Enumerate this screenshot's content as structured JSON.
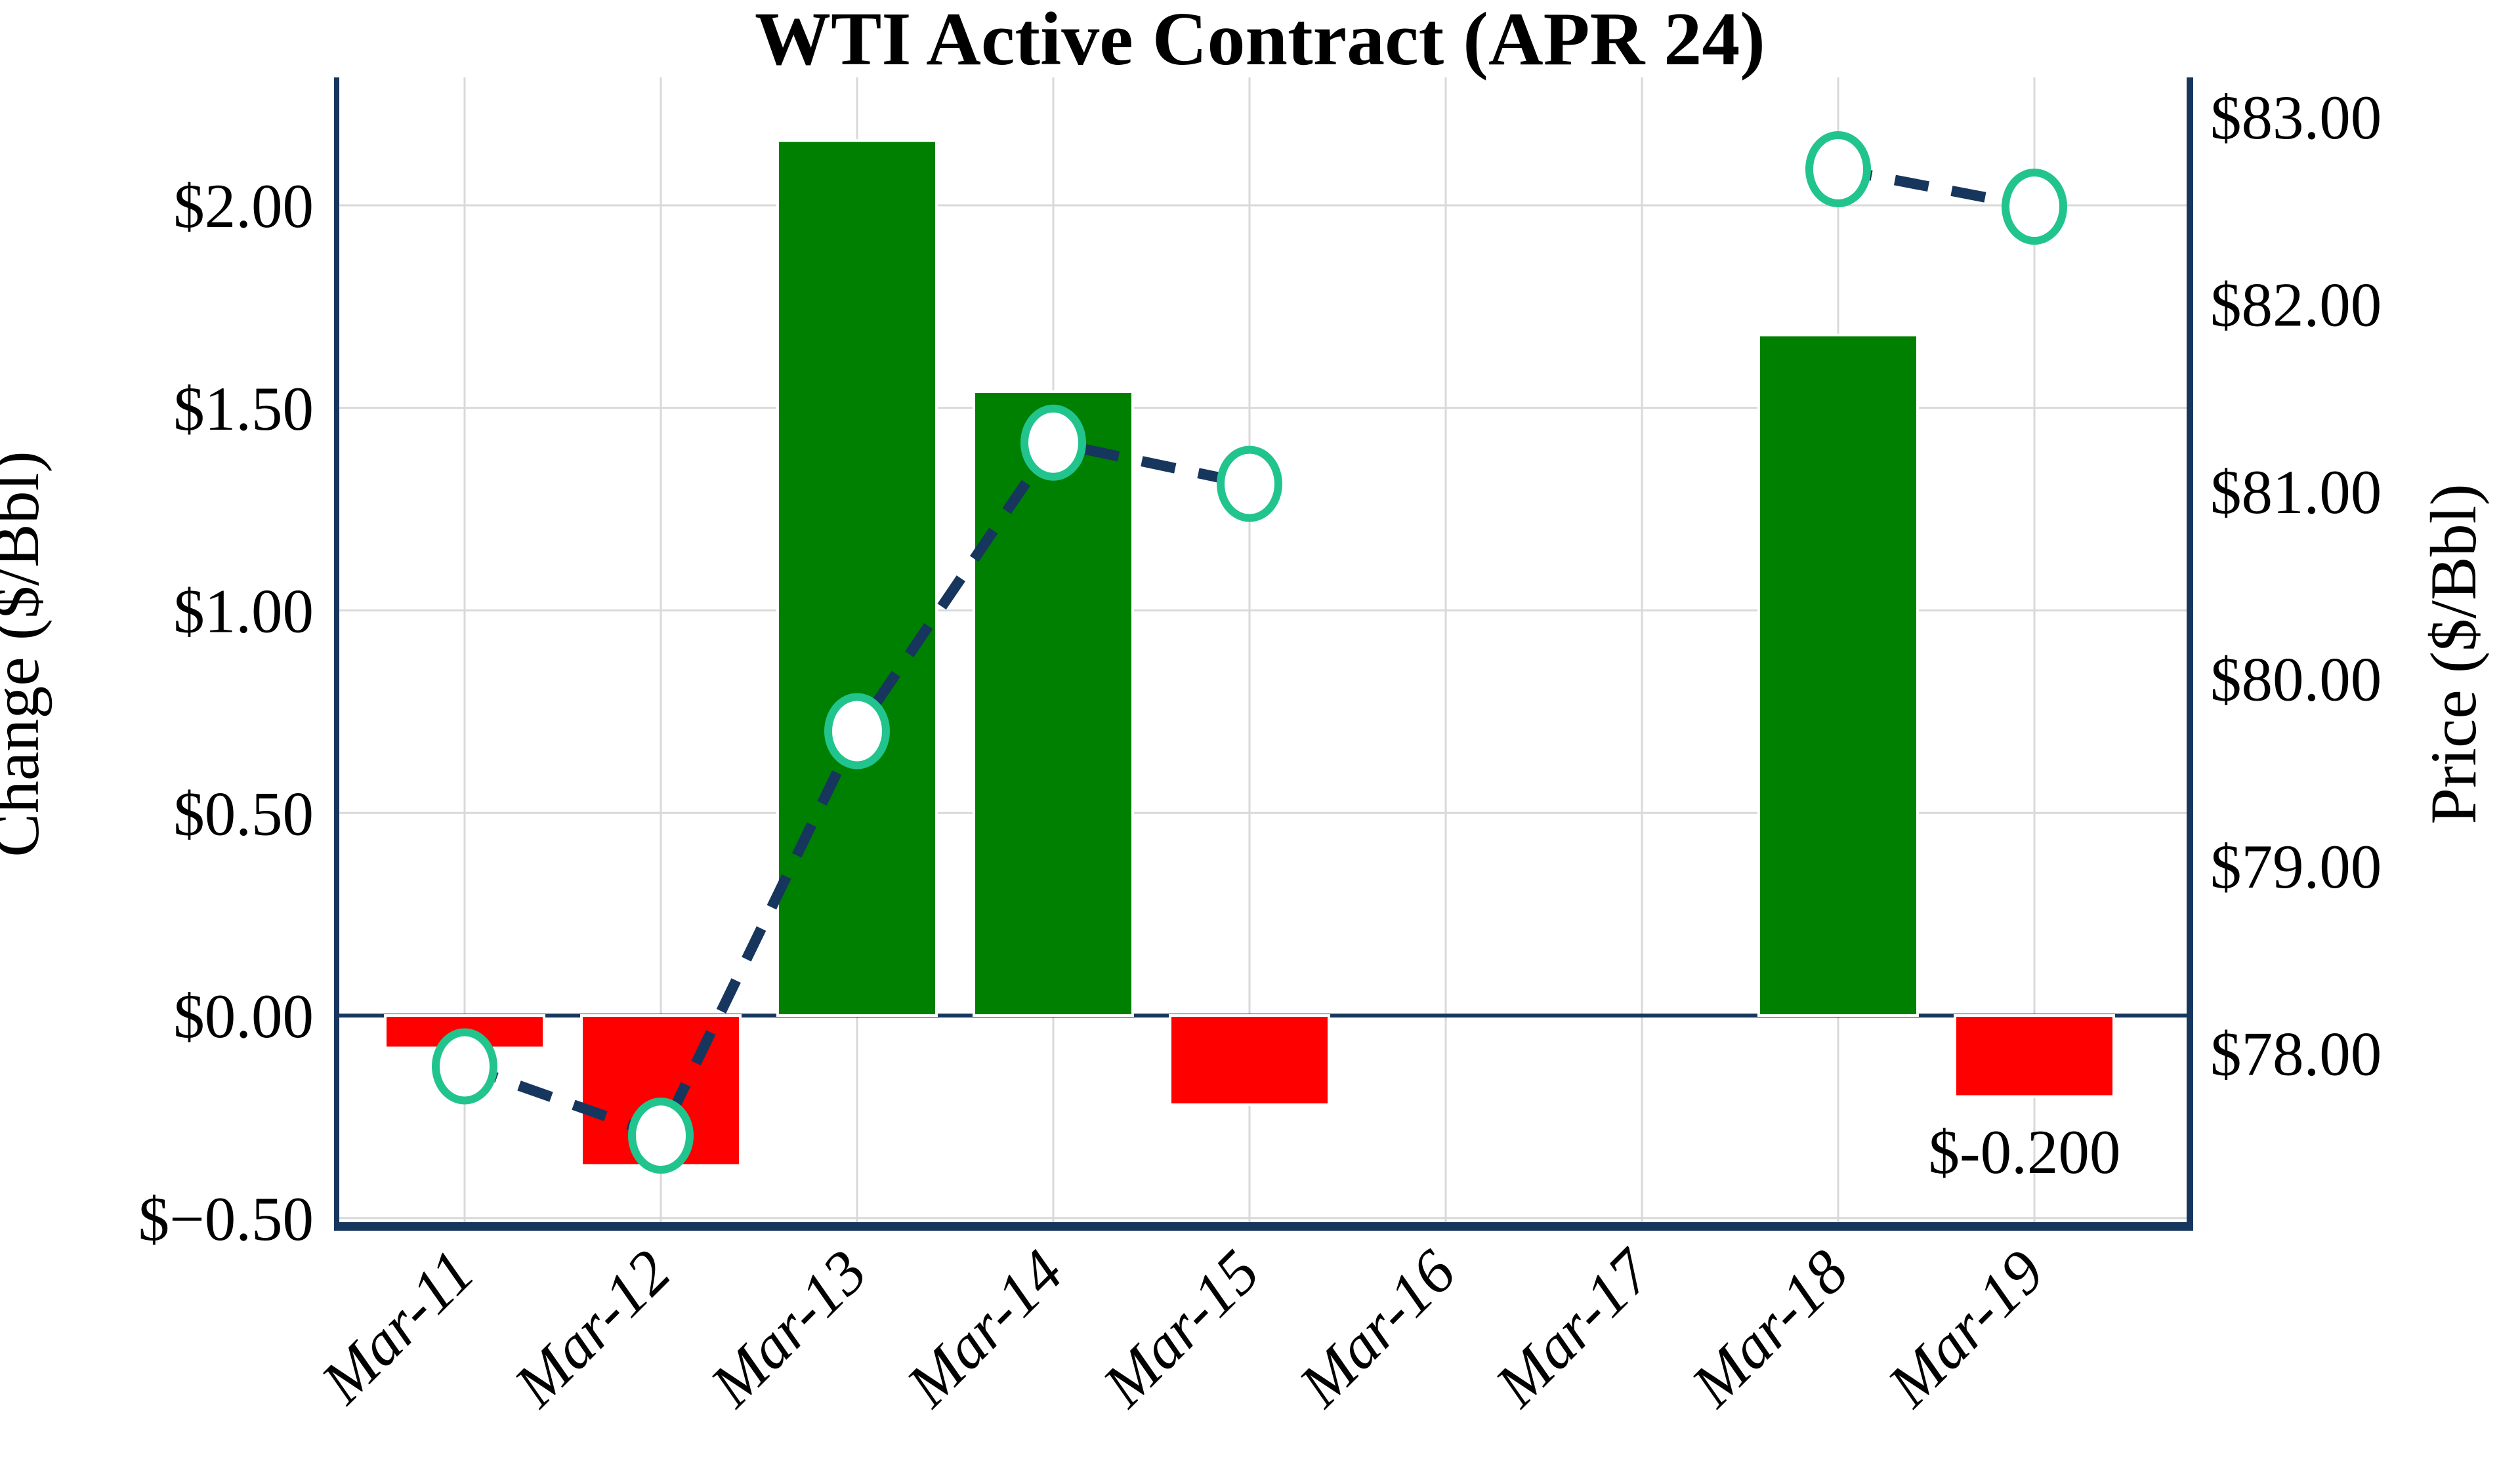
{
  "chart_data": {
    "type": "bar",
    "subtype": "combo-bar-line-dual-axis",
    "title": "WTI Active Contract (APR 24)",
    "categories": [
      "Mar-11",
      "Mar-12",
      "Mar-13",
      "Mar-14",
      "Mar-15",
      "Mar-16",
      "Mar-17",
      "Mar-18",
      "Mar-19"
    ],
    "series": [
      {
        "name": "Change ($/Bbl)",
        "type": "bar",
        "axis": "left",
        "values": [
          -0.08,
          -0.37,
          2.16,
          1.54,
          -0.22,
          null,
          null,
          1.68,
          -0.2
        ]
      },
      {
        "name": "Price ($/Bbl)",
        "type": "line",
        "axis": "right",
        "line_style": "dashed",
        "marker": "open-circle",
        "values": [
          77.93,
          77.56,
          79.72,
          81.26,
          81.04,
          null,
          null,
          82.72,
          82.52
        ]
      }
    ],
    "left_axis": {
      "label": "Change ($/Bbl)",
      "tick_labels": [
        "$2.00",
        "$1.50",
        "$1.00",
        "$0.50",
        "$0.00",
        "$−0.50"
      ],
      "tick_values": [
        2.0,
        1.5,
        1.0,
        0.5,
        0.0,
        -0.5
      ],
      "range": [
        -0.53,
        2.32
      ]
    },
    "right_axis": {
      "label": "Price ($/Bbl)",
      "tick_labels": [
        "$83.00",
        "$82.00",
        "$81.00",
        "$80.00",
        "$79.00",
        "$78.00"
      ],
      "tick_values": [
        83,
        82,
        81,
        80,
        79,
        78
      ],
      "range": [
        77.07,
        83.23
      ]
    },
    "annotation": {
      "text": "$-0.200",
      "category": "Mar-19"
    },
    "grid": "on",
    "legend": "none",
    "colors": {
      "bar_positive": "#008000",
      "bar_negative": "#FF0000",
      "bar_edge": "#FFFFFF",
      "line": "#17365D",
      "marker_ring": "#22C48E",
      "marker_fill": "#FFFFFF",
      "gridline": "#D9D9D9",
      "spine": "#17365D",
      "zero_line": "#17365D",
      "text": "#000000"
    }
  }
}
